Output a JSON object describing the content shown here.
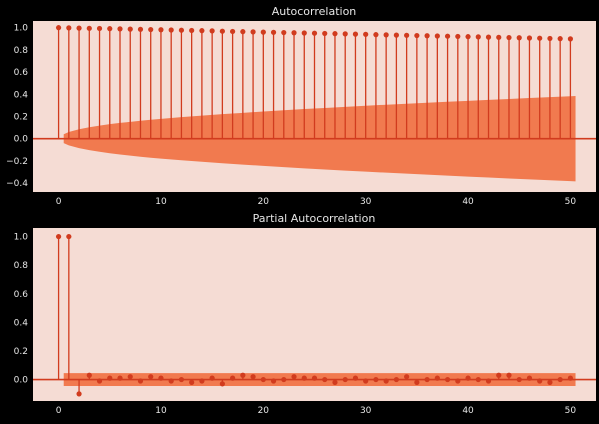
{
  "colors": {
    "background": "#000000",
    "plot_bg": "#f5dcd4",
    "stem": "#d13b1e",
    "band": "#f07448",
    "band_light": "#ea6e44",
    "text": "#e6e6e6"
  },
  "chart_data": [
    {
      "type": "stem",
      "title": "Autocorrelation",
      "xlabel": "",
      "ylabel": "",
      "xlim": [
        -2.5,
        52.5
      ],
      "ylim": [
        -0.48,
        1.06
      ],
      "xticks": [
        0,
        10,
        20,
        30,
        40,
        50
      ],
      "xtick_labels": [
        "0",
        "10",
        "20",
        "30",
        "40",
        "50"
      ],
      "yticks": [
        1.0,
        0.8,
        0.6,
        0.4,
        0.2,
        0.0,
        -0.2,
        -0.4
      ],
      "ytick_labels": [
        "1.0",
        "0.8",
        "0.6",
        "0.4",
        "0.2",
        "0.0",
        "−0.2",
        "−0.4"
      ],
      "grid": false,
      "lags": [
        0,
        1,
        2,
        3,
        4,
        5,
        6,
        7,
        8,
        9,
        10,
        11,
        12,
        13,
        14,
        15,
        16,
        17,
        18,
        19,
        20,
        21,
        22,
        23,
        24,
        25,
        26,
        27,
        28,
        29,
        30,
        31,
        32,
        33,
        34,
        35,
        36,
        37,
        38,
        39,
        40,
        41,
        42,
        43,
        44,
        45,
        46,
        47,
        48,
        49,
        50
      ],
      "values": [
        1.0,
        0.998,
        0.996,
        0.994,
        0.993,
        0.991,
        0.989,
        0.987,
        0.985,
        0.983,
        0.981,
        0.979,
        0.977,
        0.975,
        0.973,
        0.971,
        0.968,
        0.966,
        0.964,
        0.962,
        0.96,
        0.958,
        0.956,
        0.954,
        0.952,
        0.95,
        0.948,
        0.946,
        0.944,
        0.942,
        0.94,
        0.937,
        0.935,
        0.933,
        0.931,
        0.929,
        0.927,
        0.925,
        0.923,
        0.921,
        0.919,
        0.917,
        0.915,
        0.913,
        0.911,
        0.909,
        0.907,
        0.905,
        0.903,
        0.901,
        0.899
      ],
      "confidence_band": {
        "lags": [
          0.5,
          1,
          2,
          3,
          4,
          5,
          6,
          7,
          8,
          9,
          10,
          12,
          14,
          16,
          18,
          20,
          22,
          24,
          26,
          28,
          30,
          32,
          34,
          36,
          38,
          40,
          42,
          44,
          46,
          48,
          50,
          50.5
        ],
        "upper": [
          0.04,
          0.06,
          0.085,
          0.103,
          0.118,
          0.131,
          0.142,
          0.152,
          0.162,
          0.171,
          0.179,
          0.194,
          0.208,
          0.221,
          0.233,
          0.245,
          0.256,
          0.267,
          0.277,
          0.287,
          0.297,
          0.306,
          0.315,
          0.324,
          0.333,
          0.341,
          0.35,
          0.358,
          0.366,
          0.374,
          0.382,
          0.384
        ]
      }
    },
    {
      "type": "stem",
      "title": "Partial Autocorrelation",
      "xlabel": "",
      "ylabel": "",
      "xlim": [
        -2.5,
        52.5
      ],
      "ylim": [
        -0.15,
        1.06
      ],
      "xticks": [
        0,
        10,
        20,
        30,
        40,
        50
      ],
      "xtick_labels": [
        "0",
        "10",
        "20",
        "30",
        "40",
        "50"
      ],
      "yticks": [
        1.0,
        0.8,
        0.6,
        0.4,
        0.2,
        0.0
      ],
      "ytick_labels": [
        "1.0",
        "0.8",
        "0.6",
        "0.4",
        "0.2",
        "0.0"
      ],
      "grid": false,
      "lags": [
        0,
        1,
        2,
        3,
        4,
        5,
        6,
        7,
        8,
        9,
        10,
        11,
        12,
        13,
        14,
        15,
        16,
        17,
        18,
        19,
        20,
        21,
        22,
        23,
        24,
        25,
        26,
        27,
        28,
        29,
        30,
        31,
        32,
        33,
        34,
        35,
        36,
        37,
        38,
        39,
        40,
        41,
        42,
        43,
        44,
        45,
        46,
        47,
        48,
        49,
        50
      ],
      "values": [
        1.0,
        1.0,
        -0.1,
        0.03,
        -0.01,
        0.01,
        0.01,
        0.02,
        -0.01,
        0.02,
        0.01,
        -0.01,
        0.0,
        -0.02,
        -0.01,
        0.01,
        -0.03,
        0.01,
        0.03,
        0.02,
        0.0,
        -0.01,
        0.0,
        0.02,
        0.01,
        0.01,
        0.0,
        -0.02,
        0.0,
        0.01,
        -0.01,
        0.0,
        -0.01,
        0.0,
        0.02,
        -0.02,
        0.0,
        0.01,
        0.0,
        -0.01,
        0.01,
        0.0,
        -0.01,
        0.03,
        0.03,
        0.0,
        0.01,
        -0.01,
        -0.02,
        0.0,
        0.01
      ],
      "confidence_band": {
        "lags": [
          0.5,
          50.5
        ],
        "upper": [
          0.045,
          0.045
        ]
      }
    }
  ]
}
